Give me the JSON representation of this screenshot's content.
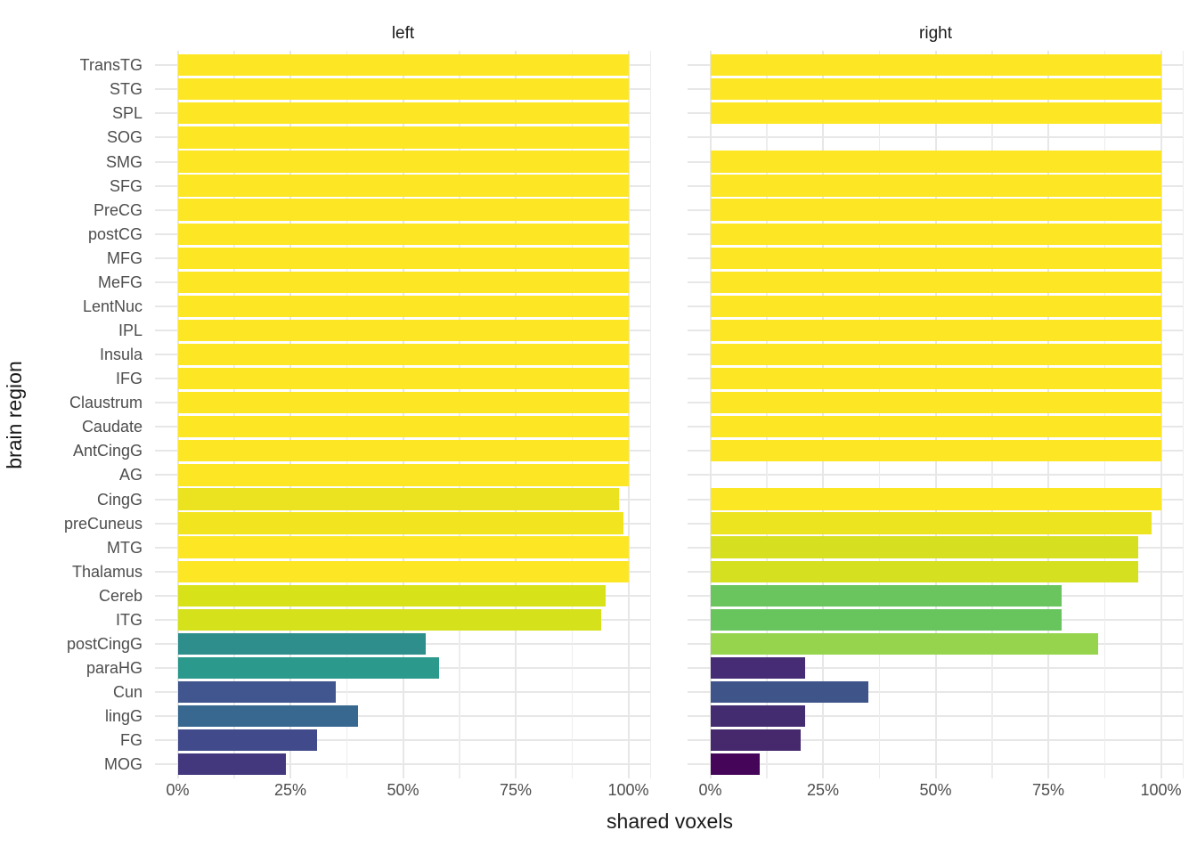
{
  "chart_data": {
    "type": "bar",
    "orientation": "horizontal",
    "xlabel": "shared voxels",
    "ylabel": "brain region",
    "xlim": [
      0,
      100
    ],
    "x_ticks": [
      0,
      25,
      50,
      75,
      100
    ],
    "x_tick_labels": [
      "0%",
      "25%",
      "50%",
      "75%",
      "100%"
    ],
    "x_minor_ticks": [
      12.5,
      37.5,
      62.5,
      87.5
    ],
    "grid": true,
    "legend": "none",
    "categories": [
      "TransTG",
      "STG",
      "SPL",
      "SOG",
      "SMG",
      "SFG",
      "PreCG",
      "postCG",
      "MFG",
      "MeFG",
      "LentNuc",
      "IPL",
      "Insula",
      "IFG",
      "Claustrum",
      "Caudate",
      "AntCingG",
      "AG",
      "CingG",
      "preCuneus",
      "MTG",
      "Thalamus",
      "Cereb",
      "ITG",
      "postCingG",
      "paraHG",
      "Cun",
      "lingG",
      "FG",
      "MOG"
    ],
    "facets": [
      {
        "label": "left",
        "values": [
          100,
          100,
          100,
          100,
          100,
          100,
          100,
          100,
          100,
          100,
          100,
          100,
          100,
          100,
          100,
          100,
          100,
          100,
          98,
          99,
          100,
          100,
          95,
          94,
          55,
          58,
          35,
          40,
          31,
          24
        ],
        "colors": [
          "#FDE725",
          "#FDE725",
          "#FDE725",
          "#FDE725",
          "#FDE725",
          "#FDE725",
          "#FDE725",
          "#FDE725",
          "#FDE725",
          "#FDE725",
          "#FDE725",
          "#FDE725",
          "#FDE725",
          "#FDE725",
          "#FDE725",
          "#FDE725",
          "#FDE725",
          "#FDE725",
          "#EBE31F",
          "#F2E41F",
          "#FDE725",
          "#FDE725",
          "#D8E219",
          "#D5E11B",
          "#2D8E8C",
          "#2B998B",
          "#41568E",
          "#38688F",
          "#414B8C",
          "#43377E"
        ]
      },
      {
        "label": "right",
        "values": [
          100,
          100,
          100,
          null,
          100,
          100,
          100,
          100,
          100,
          100,
          100,
          100,
          100,
          100,
          100,
          100,
          100,
          null,
          100,
          98,
          95,
          95,
          78,
          78,
          86,
          21,
          35,
          21,
          20,
          11
        ],
        "colors": [
          "#FDE725",
          "#FDE725",
          "#FDE725",
          null,
          "#FDE725",
          "#FDE725",
          "#FDE725",
          "#FDE725",
          "#FDE725",
          "#FDE725",
          "#FDE725",
          "#FDE725",
          "#FDE725",
          "#FDE725",
          "#FDE725",
          "#FDE725",
          "#FDE725",
          null,
          "#FBE723",
          "#ECE41F",
          "#D6E021",
          "#D5E021",
          "#6AC55E",
          "#68C55E",
          "#95D44C",
          "#452C75",
          "#3F558A",
          "#442C71",
          "#46296C",
          "#450559"
        ]
      }
    ],
    "colors_meaning": "viridis fill mapped to shared voxel percentage",
    "background": "#ffffff",
    "gridline_color": "#e7e7e7",
    "tick_label_color": "#4d4d4d"
  }
}
